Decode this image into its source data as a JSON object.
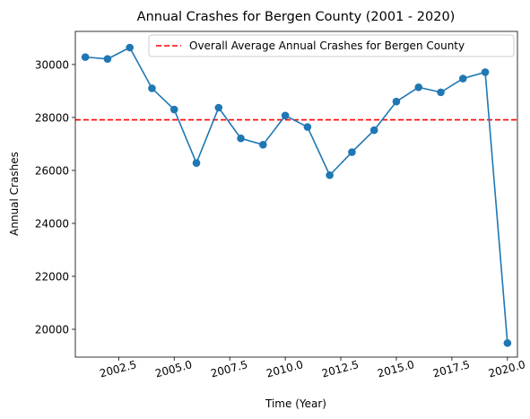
{
  "chart_data": {
    "type": "line",
    "title": "Annual Crashes for Bergen County (2001 - 2020)",
    "xlabel": "Time (Year)",
    "ylabel": "Annual Crashes",
    "xlim": [
      2000.55,
      2020.45
    ],
    "ylim": [
      18950,
      31250
    ],
    "x_ticks": [
      2002.5,
      2005.0,
      2007.5,
      2010.0,
      2012.5,
      2015.0,
      2017.5,
      2020.0
    ],
    "x_tick_labels": [
      "2002.5",
      "2005.0",
      "2007.5",
      "2010.0",
      "2012.5",
      "2015.0",
      "2017.5",
      "2020.0"
    ],
    "y_ticks": [
      20000,
      22000,
      24000,
      26000,
      28000,
      30000
    ],
    "y_tick_labels": [
      "20000",
      "22000",
      "24000",
      "26000",
      "28000",
      "30000"
    ],
    "grid": false,
    "legend_position": "top-right",
    "series": [
      {
        "name": "",
        "color": "#1f77b4",
        "marker": "circle",
        "x": [
          2001,
          2002,
          2003,
          2004,
          2005,
          2006,
          2007,
          2008,
          2009,
          2010,
          2011,
          2012,
          2013,
          2014,
          2015,
          2016,
          2017,
          2018,
          2019,
          2020
        ],
        "y": [
          30280,
          30210,
          30640,
          29100,
          28300,
          26280,
          28370,
          27210,
          26970,
          28070,
          27640,
          25820,
          26690,
          27520,
          28600,
          29140,
          28950,
          29470,
          29710,
          19480
        ]
      }
    ],
    "reference_lines": [
      {
        "name": "Overall Average Annual Crashes for Bergen County",
        "y": 27910,
        "color": "#ff0000",
        "style": "dashed"
      }
    ]
  }
}
